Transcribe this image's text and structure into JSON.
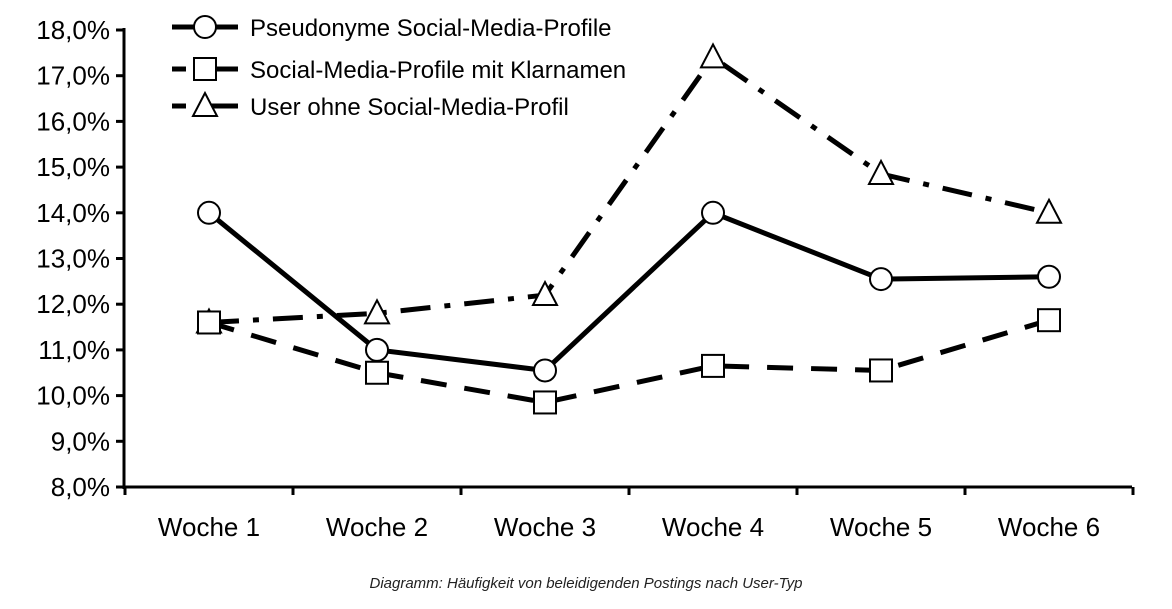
{
  "chart_data": {
    "type": "line",
    "categories": [
      "Woche 1",
      "Woche 2",
      "Woche 3",
      "Woche 4",
      "Woche 5",
      "Woche 6"
    ],
    "series": [
      {
        "name": "Pseudonyme Social-Media-Profile",
        "values": [
          14.0,
          11.0,
          10.55,
          14.0,
          12.55,
          12.6
        ],
        "marker": "circle",
        "line_style": "solid"
      },
      {
        "name": "Social-Media-Profile mit Klarnamen",
        "values": [
          11.6,
          10.5,
          9.85,
          10.65,
          10.55,
          11.65
        ],
        "marker": "square",
        "line_style": "dashed"
      },
      {
        "name": "User ohne Social-Media-Profil",
        "values": [
          11.6,
          11.8,
          12.2,
          17.4,
          14.85,
          14.0
        ],
        "marker": "triangle",
        "line_style": "dash-dot"
      }
    ],
    "yticks": [
      "8,0%",
      "9,0%",
      "10,0%",
      "11,0%",
      "12,0%",
      "13,0%",
      "14,0%",
      "15,0%",
      "16,0%",
      "17,0%",
      "18,0%"
    ],
    "ylim": [
      8,
      18
    ],
    "grid": false,
    "legend_position": "top-left",
    "title": "",
    "xlabel": "",
    "ylabel": "",
    "colors": {
      "line": "#000000",
      "marker_fill": "#ffffff"
    }
  },
  "caption": "Diagramm: Häufigkeit von beleidigenden Postings nach User-Typ"
}
